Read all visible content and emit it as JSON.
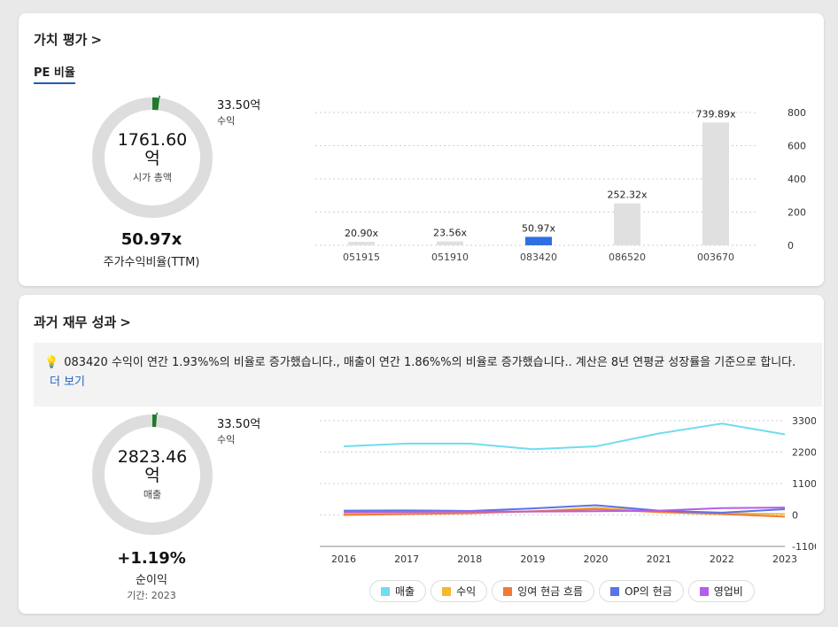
{
  "valuation": {
    "title": "가치 평가",
    "chevron": ">",
    "tab": "PE 비율",
    "donut": {
      "value": "1761.60",
      "unit": "억",
      "label": "시가 총액",
      "share": 0.019
    },
    "side": {
      "value": "33.50억",
      "label": "수익"
    },
    "stat": {
      "value": "50.97x",
      "label": "주가수익비율(TTM)"
    }
  },
  "pe_chart": {
    "type": "bar",
    "categories": [
      "051915",
      "051910",
      "083420",
      "086520",
      "003670"
    ],
    "values": [
      20.9,
      23.56,
      50.97,
      252.32,
      739.89
    ],
    "value_labels": [
      "20.90x",
      "23.56x",
      "50.97x",
      "252.32x",
      "739.89x"
    ],
    "highlight_index": 2,
    "ylim": [
      0,
      800
    ],
    "yticks": [
      0,
      200,
      400,
      600,
      800
    ],
    "ytick_labels": [
      "0",
      "200.00",
      "400.00",
      "600.00",
      "800.00"
    ],
    "colors": {
      "bar": "#e0e0e0",
      "highlight": "#2f6fe4",
      "grid": "#cfcfcf"
    }
  },
  "financials": {
    "title": "과거 재무 성과",
    "chevron": ">",
    "insight": {
      "icon": "lightbulb-icon",
      "text": "083420 수익이 연간 1.93%%의 비율로 증가했습니다., 매출이 연간 1.86%%의 비율로 증가했습니다.. 계산은 8년 연평균 성장률을 기준으로 합니다.",
      "more": "더 보기"
    },
    "donut": {
      "value": "2823.46",
      "unit": "억",
      "label": "매출",
      "share": 0.012
    },
    "side": {
      "value": "33.50억",
      "label": "수익"
    },
    "stat": {
      "value": "+1.19%",
      "label": "순이익",
      "note": "기간: 2023"
    }
  },
  "fin_chart": {
    "type": "line",
    "x": [
      2016,
      2017,
      2018,
      2019,
      2020,
      2021,
      2022,
      2023
    ],
    "ylim": [
      -1100,
      3300
    ],
    "yticks": [
      -1100,
      0,
      1100,
      2200,
      3300
    ],
    "ytick_labels": [
      "-1100억",
      "0",
      "1100억",
      "2200억",
      "3300억"
    ],
    "series": [
      {
        "name": "매출",
        "color": "#6fdcf0",
        "values": [
          2400,
          2500,
          2500,
          2300,
          2400,
          2850,
          3200,
          2820
        ]
      },
      {
        "name": "수익",
        "color": "#f5b82e",
        "values": [
          50,
          60,
          80,
          120,
          250,
          120,
          60,
          34
        ]
      },
      {
        "name": "잉여 현금 흐름",
        "color": "#f07a3a",
        "values": [
          0,
          30,
          60,
          130,
          200,
          100,
          30,
          -60
        ]
      },
      {
        "name": "OP의 현금",
        "color": "#5b73e8",
        "values": [
          150,
          160,
          140,
          230,
          340,
          150,
          80,
          200
        ]
      },
      {
        "name": "영업비",
        "color": "#b45ee8",
        "values": [
          100,
          110,
          120,
          120,
          130,
          150,
          240,
          260
        ]
      }
    ]
  }
}
